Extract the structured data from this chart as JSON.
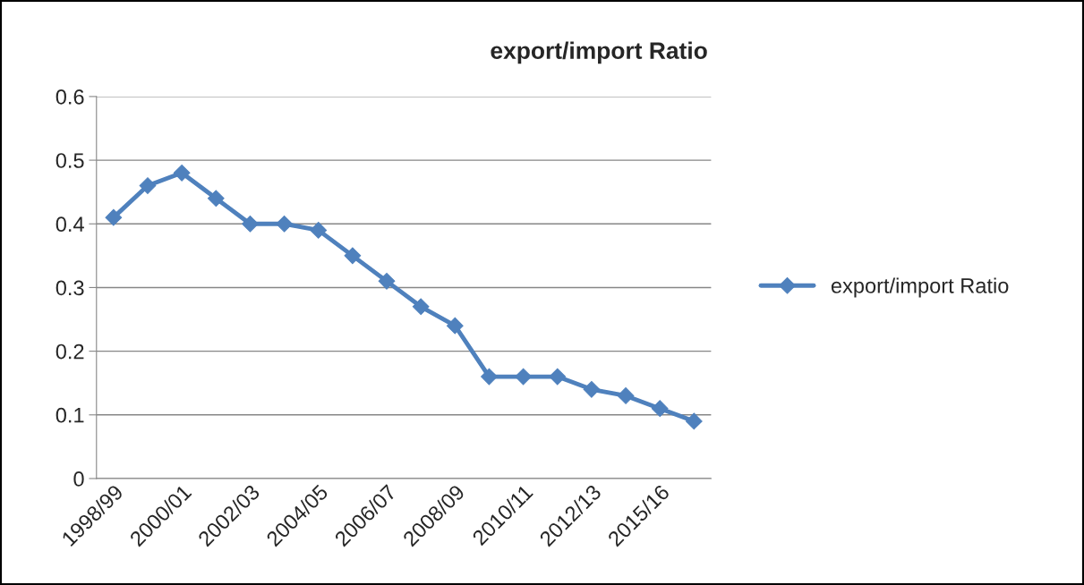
{
  "chart_data": {
    "type": "line",
    "title": "export/import Ratio",
    "categories": [
      "1998/99",
      null,
      "2000/01",
      null,
      "2002/03",
      null,
      "2004/05",
      null,
      "2006/07",
      null,
      "2008/09",
      null,
      "2010/11",
      null,
      "2012/13",
      null,
      "2015/16",
      null
    ],
    "series": [
      {
        "name": "export/import Ratio",
        "color": "#4f81bd",
        "values": [
          0.41,
          0.46,
          0.48,
          0.44,
          0.4,
          0.4,
          0.39,
          0.35,
          0.31,
          0.27,
          0.24,
          0.16,
          0.16,
          0.16,
          0.14,
          0.13,
          0.11,
          0.09
        ]
      }
    ],
    "ylim": [
      0,
      0.6
    ],
    "yticks": [
      0,
      0.1,
      0.2,
      0.3,
      0.4,
      0.5,
      0.6
    ],
    "grid": "y",
    "legend": "right",
    "marker": "diamond",
    "line_style": "solid"
  }
}
